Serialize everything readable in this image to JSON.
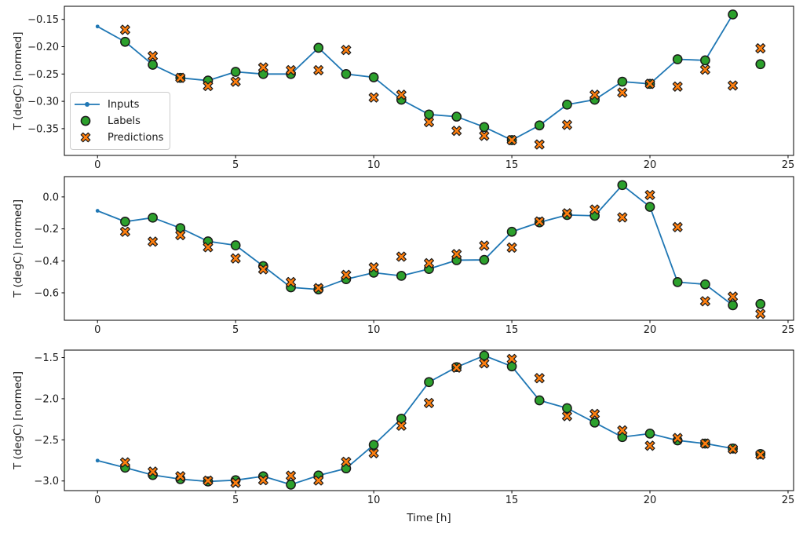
{
  "figure": {
    "xlabel": "Time [h]",
    "ylabel": "T (degC) [normed]",
    "legend": {
      "inputs": "Inputs",
      "labels": "Labels",
      "predictions": "Predictions"
    },
    "colors": {
      "inputs": "#1f77b4",
      "labels": "#2ca02c",
      "predictions": "#ff7f0e",
      "marker_edge": "#1a1a1a",
      "spine": "#000000",
      "legend_border": "#cccccc"
    }
  },
  "chart_data": [
    {
      "type": "line",
      "title": "",
      "xlabel": "",
      "ylabel": "T (degC) [normed]",
      "grid": false,
      "xlim": [
        -1.2,
        25.2
      ],
      "ylim": [
        -0.399,
        -0.126
      ],
      "xticks": [
        0,
        5,
        10,
        15,
        20,
        25
      ],
      "xtick_labels": [
        "0",
        "5",
        "10",
        "15",
        "20",
        "25"
      ],
      "yticks": [
        -0.15,
        -0.2,
        -0.25,
        -0.3,
        -0.35
      ],
      "ytick_labels": [
        "−0.15",
        "−0.20",
        "−0.25",
        "−0.30",
        "−0.35"
      ],
      "series": [
        {
          "name": "Inputs",
          "style": "line-dot",
          "x": [
            0,
            1,
            2,
            3,
            4,
            5,
            6,
            7,
            8,
            9,
            10,
            11,
            12,
            13,
            14,
            15,
            16,
            17,
            18,
            19,
            20,
            21,
            22,
            23
          ],
          "values": [
            -0.163,
            -0.191,
            -0.233,
            -0.257,
            -0.262,
            -0.246,
            -0.25,
            -0.25,
            -0.202,
            -0.25,
            -0.256,
            -0.297,
            -0.324,
            -0.328,
            -0.347,
            -0.371,
            -0.344,
            -0.306,
            -0.297,
            -0.264,
            -0.268,
            -0.223,
            -0.225,
            -0.141
          ]
        },
        {
          "name": "Labels",
          "style": "circle",
          "x": [
            1,
            2,
            3,
            4,
            5,
            6,
            7,
            8,
            9,
            10,
            11,
            12,
            13,
            14,
            15,
            16,
            17,
            18,
            19,
            20,
            21,
            22,
            23,
            24
          ],
          "values": [
            -0.191,
            -0.233,
            -0.257,
            -0.262,
            -0.246,
            -0.25,
            -0.25,
            -0.202,
            -0.25,
            -0.256,
            -0.297,
            -0.324,
            -0.328,
            -0.347,
            -0.371,
            -0.344,
            -0.306,
            -0.297,
            -0.264,
            -0.268,
            -0.223,
            -0.225,
            -0.141,
            -0.232
          ]
        },
        {
          "name": "Predictions",
          "style": "x-marker",
          "x": [
            1,
            2,
            3,
            4,
            5,
            6,
            7,
            8,
            9,
            10,
            11,
            12,
            13,
            14,
            15,
            16,
            17,
            18,
            19,
            20,
            21,
            22,
            23,
            24
          ],
          "values": [
            -0.169,
            -0.217,
            -0.257,
            -0.272,
            -0.264,
            -0.238,
            -0.243,
            -0.243,
            -0.206,
            -0.293,
            -0.288,
            -0.338,
            -0.354,
            -0.363,
            -0.371,
            -0.379,
            -0.343,
            -0.288,
            -0.284,
            -0.268,
            -0.273,
            -0.242,
            -0.271,
            -0.203
          ]
        }
      ]
    },
    {
      "type": "line",
      "title": "",
      "xlabel": "",
      "ylabel": "T (degC) [normed]",
      "grid": false,
      "xlim": [
        -1.2,
        25.2
      ],
      "ylim": [
        -0.772,
        0.127
      ],
      "xticks": [
        0,
        5,
        10,
        15,
        20,
        25
      ],
      "xtick_labels": [
        "0",
        "5",
        "10",
        "15",
        "20",
        "25"
      ],
      "yticks": [
        0.0,
        -0.2,
        -0.4,
        -0.6
      ],
      "ytick_labels": [
        "0.0",
        "−0.2",
        "−0.4",
        "−0.6"
      ],
      "series": [
        {
          "name": "Inputs",
          "style": "line-dot",
          "x": [
            0,
            1,
            2,
            3,
            4,
            5,
            6,
            7,
            8,
            9,
            10,
            11,
            12,
            13,
            14,
            15,
            16,
            17,
            18,
            19,
            20,
            21,
            22,
            23
          ],
          "values": [
            -0.087,
            -0.155,
            -0.13,
            -0.195,
            -0.278,
            -0.303,
            -0.433,
            -0.566,
            -0.579,
            -0.515,
            -0.474,
            -0.494,
            -0.451,
            -0.396,
            -0.394,
            -0.218,
            -0.159,
            -0.113,
            -0.118,
            0.074,
            -0.062,
            -0.533,
            -0.547,
            -0.678
          ]
        },
        {
          "name": "Labels",
          "style": "circle",
          "x": [
            1,
            2,
            3,
            4,
            5,
            6,
            7,
            8,
            9,
            10,
            11,
            12,
            13,
            14,
            15,
            16,
            17,
            18,
            19,
            20,
            21,
            22,
            23,
            24
          ],
          "values": [
            -0.155,
            -0.13,
            -0.195,
            -0.278,
            -0.303,
            -0.433,
            -0.566,
            -0.579,
            -0.515,
            -0.474,
            -0.494,
            -0.451,
            -0.396,
            -0.394,
            -0.218,
            -0.159,
            -0.113,
            -0.118,
            0.074,
            -0.062,
            -0.533,
            -0.547,
            -0.678,
            -0.67
          ]
        },
        {
          "name": "Predictions",
          "style": "x-marker",
          "x": [
            1,
            2,
            3,
            4,
            5,
            6,
            7,
            8,
            9,
            10,
            11,
            12,
            13,
            14,
            15,
            16,
            17,
            18,
            19,
            20,
            21,
            22,
            23,
            24
          ],
          "values": [
            -0.218,
            -0.28,
            -0.239,
            -0.315,
            -0.385,
            -0.453,
            -0.533,
            -0.571,
            -0.488,
            -0.441,
            -0.374,
            -0.415,
            -0.358,
            -0.305,
            -0.317,
            -0.154,
            -0.103,
            -0.079,
            -0.128,
            0.012,
            -0.189,
            -0.653,
            -0.624,
            -0.732
          ]
        }
      ]
    },
    {
      "type": "line",
      "title": "",
      "xlabel": "Time [h]",
      "ylabel": "T (degC) [normed]",
      "grid": false,
      "xlim": [
        -1.2,
        25.2
      ],
      "ylim": [
        -3.117,
        -1.409
      ],
      "xticks": [
        0,
        5,
        10,
        15,
        20,
        25
      ],
      "xtick_labels": [
        "0",
        "5",
        "10",
        "15",
        "20",
        "25"
      ],
      "yticks": [
        -1.5,
        -2.0,
        -2.5,
        -3.0
      ],
      "ytick_labels": [
        "−1.5",
        "−2.0",
        "−2.5",
        "−3.0"
      ],
      "series": [
        {
          "name": "Inputs",
          "style": "line-dot",
          "x": [
            0,
            1,
            2,
            3,
            4,
            5,
            6,
            7,
            8,
            9,
            10,
            11,
            12,
            13,
            14,
            15,
            16,
            17,
            18,
            19,
            20,
            21,
            22,
            23
          ],
          "values": [
            -2.752,
            -2.838,
            -2.927,
            -2.977,
            -3.006,
            -2.99,
            -2.943,
            -3.044,
            -2.933,
            -2.847,
            -2.561,
            -2.242,
            -1.798,
            -1.616,
            -1.476,
            -1.607,
            -2.02,
            -2.115,
            -2.29,
            -2.466,
            -2.424,
            -2.507,
            -2.545,
            -2.605
          ]
        },
        {
          "name": "Labels",
          "style": "circle",
          "x": [
            1,
            2,
            3,
            4,
            5,
            6,
            7,
            8,
            9,
            10,
            11,
            12,
            13,
            14,
            15,
            16,
            17,
            18,
            19,
            20,
            21,
            22,
            23,
            24
          ],
          "values": [
            -2.838,
            -2.927,
            -2.977,
            -3.006,
            -2.99,
            -2.943,
            -3.044,
            -2.933,
            -2.847,
            -2.561,
            -2.242,
            -1.798,
            -1.616,
            -1.476,
            -1.607,
            -2.02,
            -2.115,
            -2.29,
            -2.466,
            -2.424,
            -2.507,
            -2.545,
            -2.605,
            -2.672
          ]
        },
        {
          "name": "Predictions",
          "style": "x-marker",
          "x": [
            1,
            2,
            3,
            4,
            5,
            6,
            7,
            8,
            9,
            10,
            11,
            12,
            13,
            14,
            15,
            16,
            17,
            18,
            19,
            20,
            21,
            22,
            23,
            24
          ],
          "values": [
            -2.774,
            -2.886,
            -2.943,
            -2.996,
            -3.022,
            -2.99,
            -2.936,
            -2.994,
            -2.767,
            -2.662,
            -2.328,
            -2.052,
            -1.622,
            -1.569,
            -1.517,
            -1.75,
            -2.211,
            -2.185,
            -2.385,
            -2.571,
            -2.478,
            -2.545,
            -2.611,
            -2.681
          ]
        }
      ]
    }
  ]
}
